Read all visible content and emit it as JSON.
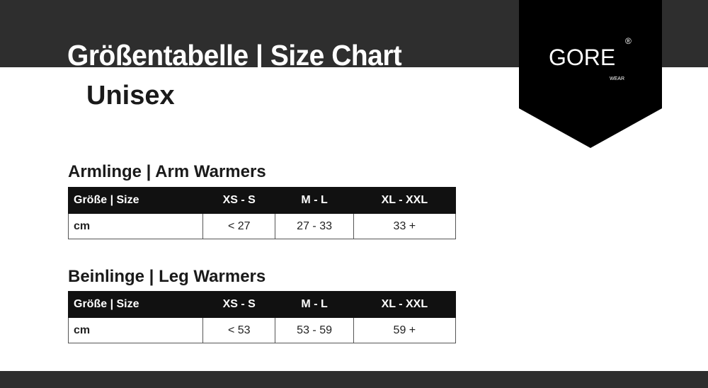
{
  "header": {
    "title": "Größentabelle | Size Chart",
    "subtitle": "Unisex"
  },
  "logo": {
    "brand": "GORE",
    "registered": "®",
    "sub": "WEAR"
  },
  "colors": {
    "band": "#2e2e2e",
    "logo_bg": "#000000",
    "table_header": "#111111"
  },
  "tables": [
    {
      "title": "Armlinge | Arm Warmers",
      "headers": [
        "Größe | Size",
        "XS - S",
        "M - L",
        "XL - XXL"
      ],
      "row": [
        "cm",
        "< 27",
        "27 - 33",
        "33 +"
      ]
    },
    {
      "title": "Beinlinge | Leg Warmers",
      "headers": [
        "Größe | Size",
        "XS - S",
        "M - L",
        "XL - XXL"
      ],
      "row": [
        "cm",
        "< 53",
        "53 - 59",
        "59 +"
      ]
    }
  ]
}
